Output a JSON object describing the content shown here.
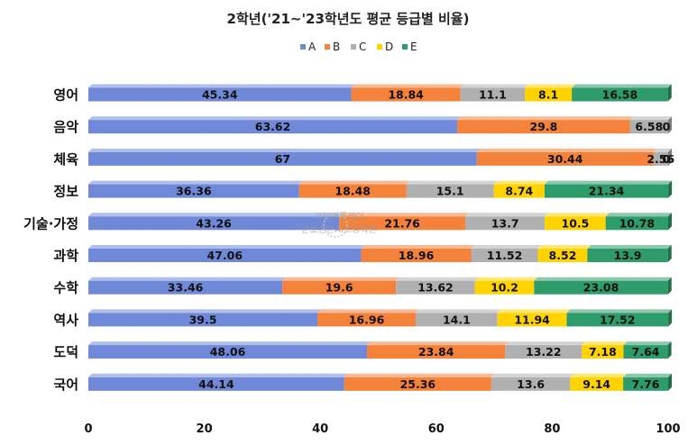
{
  "chart_data": {
    "type": "bar",
    "orientation": "horizontal",
    "stacked": true,
    "title": "2학년('21~'23학년도 평균 등급별 비율)",
    "categories": [
      "영어",
      "음악",
      "체육",
      "정보",
      "기술·가정",
      "과학",
      "수학",
      "역사",
      "도덕",
      "국어"
    ],
    "series": [
      {
        "name": "A",
        "color": "#6F88D8",
        "values": [
          45.34,
          63.62,
          67,
          36.36,
          43.26,
          47.06,
          33.46,
          39.5,
          48.06,
          44.14
        ]
      },
      {
        "name": "B",
        "color": "#F4823B",
        "values": [
          18.84,
          29.8,
          30.44,
          18.48,
          21.76,
          18.96,
          19.6,
          16.96,
          23.84,
          25.36
        ]
      },
      {
        "name": "C",
        "color": "#B0B0B0",
        "values": [
          11.1,
          6.58,
          2.56,
          15.1,
          13.7,
          11.52,
          13.62,
          14.1,
          13.22,
          13.6
        ]
      },
      {
        "name": "D",
        "color": "#FFD300",
        "values": [
          8.1,
          0,
          0,
          8.74,
          10.5,
          8.52,
          10.2,
          11.94,
          7.18,
          9.14
        ]
      },
      {
        "name": "E",
        "color": "#2E9B6A",
        "values": [
          16.58,
          0,
          0,
          21.34,
          10.78,
          13.9,
          23.08,
          17.52,
          7.64,
          7.76
        ]
      }
    ],
    "data_labels": [
      [
        "45.34",
        "18.84",
        "11.1",
        "8.1",
        "16.58"
      ],
      [
        "63.62",
        "29.8",
        "6.58",
        "0",
        ""
      ],
      [
        "67",
        "30.44",
        "2.56",
        "0",
        "0"
      ],
      [
        "36.36",
        "18.48",
        "15.1",
        "8.74",
        "21.34"
      ],
      [
        "43.26",
        "21.76",
        "13.7",
        "10.5",
        "10.78"
      ],
      [
        "47.06",
        "18.96",
        "11.52",
        "8.52",
        "13.9"
      ],
      [
        "33.46",
        "19.6",
        "13.62",
        "10.2",
        "23.08"
      ],
      [
        "39.5",
        "16.96",
        "14.1",
        "11.94",
        "17.52"
      ],
      [
        "48.06",
        "23.84",
        "13.22",
        "7.18",
        "7.64"
      ],
      [
        "44.14",
        "25.36",
        "13.6",
        "9.14",
        "7.76"
      ]
    ],
    "xlim": [
      0,
      100
    ],
    "xticks": [
      "0",
      "20",
      "40",
      "60",
      "80",
      "100"
    ],
    "legend": "top-center",
    "grid": false
  },
  "watermark": {
    "line1": "코딩앤플레이",
    "line2": "군포산본AI코딩학원"
  }
}
